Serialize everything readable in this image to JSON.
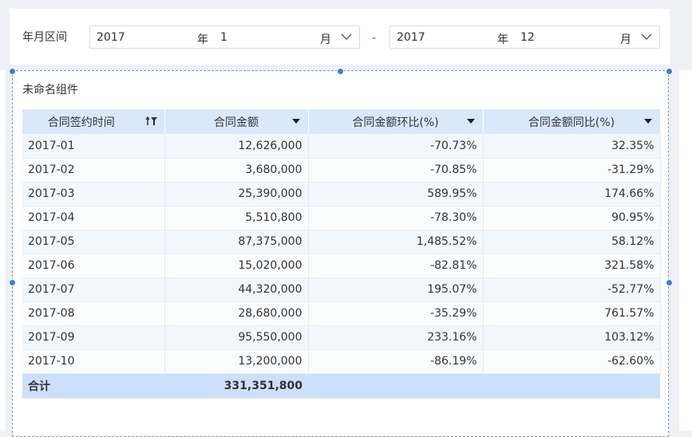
{
  "filter": {
    "label": "年月区间",
    "start": {
      "year": "2017",
      "year_unit": "年",
      "month": "1",
      "month_unit": "月"
    },
    "separator": "-",
    "end": {
      "year": "2017",
      "year_unit": "年",
      "month": "12",
      "month_unit": "月"
    }
  },
  "widget": {
    "title": "未命名组件",
    "columns": [
      {
        "label": "合同签约时间",
        "icon": "sort-filter-icon"
      },
      {
        "label": "合同金额",
        "icon": "dropdown-triangle-icon"
      },
      {
        "label": "合同金额环比(%)",
        "icon": "dropdown-triangle-icon"
      },
      {
        "label": "合同金额同比(%)",
        "icon": "dropdown-triangle-icon"
      }
    ],
    "rows": [
      {
        "date": "2017-01",
        "amount": "12,626,000",
        "mom": "-70.73%",
        "yoy": "32.35%"
      },
      {
        "date": "2017-02",
        "amount": "3,680,000",
        "mom": "-70.85%",
        "yoy": "-31.29%"
      },
      {
        "date": "2017-03",
        "amount": "25,390,000",
        "mom": "589.95%",
        "yoy": "174.66%"
      },
      {
        "date": "2017-04",
        "amount": "5,510,800",
        "mom": "-78.30%",
        "yoy": "90.95%"
      },
      {
        "date": "2017-05",
        "amount": "87,375,000",
        "mom": "1,485.52%",
        "yoy": "58.12%"
      },
      {
        "date": "2017-06",
        "amount": "15,020,000",
        "mom": "-82.81%",
        "yoy": "321.58%"
      },
      {
        "date": "2017-07",
        "amount": "44,320,000",
        "mom": "195.07%",
        "yoy": "-52.77%"
      },
      {
        "date": "2017-08",
        "amount": "28,680,000",
        "mom": "-35.29%",
        "yoy": "761.57%"
      },
      {
        "date": "2017-09",
        "amount": "95,550,000",
        "mom": "233.16%",
        "yoy": "103.12%"
      },
      {
        "date": "2017-10",
        "amount": "13,200,000",
        "mom": "-86.19%",
        "yoy": "-62.60%"
      }
    ],
    "total": {
      "label": "合计",
      "amount": "331,351,800",
      "mom": "",
      "yoy": ""
    }
  },
  "colors": {
    "header_bg": "#dbe8fb",
    "total_bg": "#cde0fb",
    "selection": "#3b7ddd"
  }
}
